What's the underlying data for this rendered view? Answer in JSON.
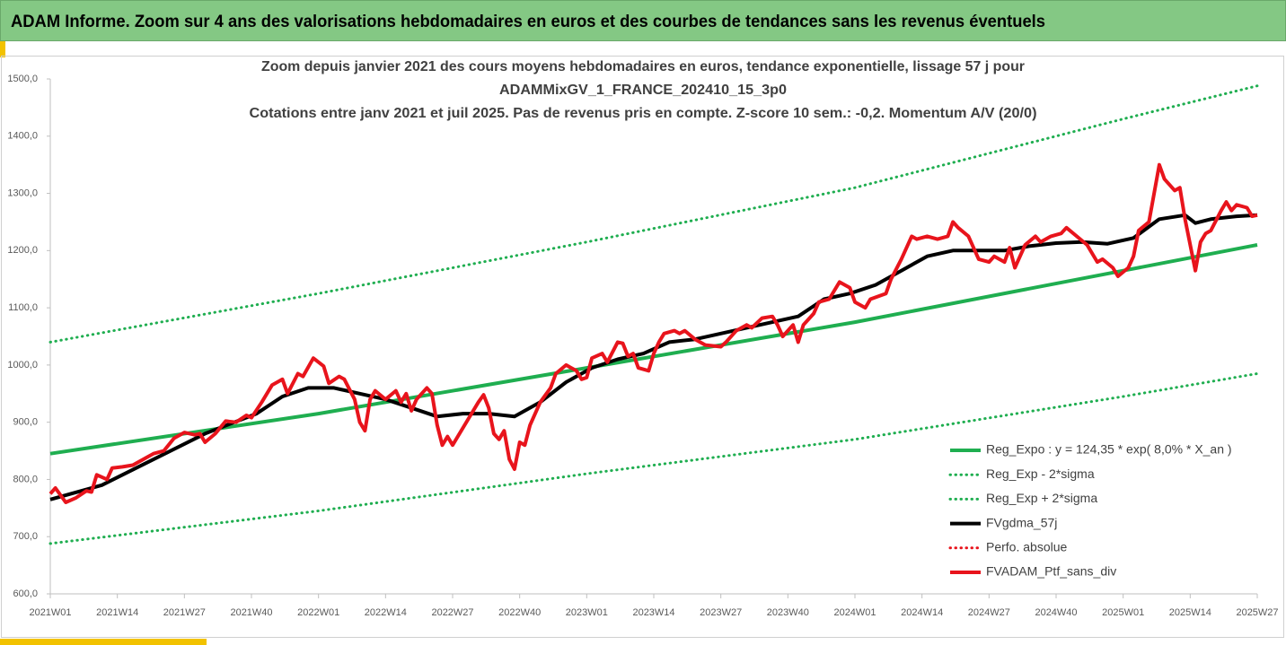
{
  "header": {
    "title": "ADAM Informe. Zoom sur 4 ans des valorisations hebdomadaires en euros et des courbes de tendances sans les revenus éventuels"
  },
  "chart_data": {
    "type": "line",
    "title": [
      "Zoom depuis janvier 2021 des cours moyens hebdomadaires  en euros, tendance exponentielle, lissage 57 j pour",
      "ADAMMixGV_1_FRANCE_202410_15_3p0",
      "Cotations entre janv 2021 et juil 2025. Pas de revenus pris en compte. Z-score 10 sem.: -0,2. Momentum A/V (20/0)"
    ],
    "xlim": [
      0,
      234
    ],
    "xticks": [
      {
        "value": 0,
        "label": "2021W01"
      },
      {
        "value": 13,
        "label": "2021W14"
      },
      {
        "value": 26,
        "label": "2021W27"
      },
      {
        "value": 39,
        "label": "2021W40"
      },
      {
        "value": 52,
        "label": "2022W01"
      },
      {
        "value": 65,
        "label": "2022W14"
      },
      {
        "value": 78,
        "label": "2022W27"
      },
      {
        "value": 91,
        "label": "2022W40"
      },
      {
        "value": 104,
        "label": "2023W01"
      },
      {
        "value": 117,
        "label": "2023W14"
      },
      {
        "value": 130,
        "label": "2023W27"
      },
      {
        "value": 143,
        "label": "2023W40"
      },
      {
        "value": 156,
        "label": "2024W01"
      },
      {
        "value": 169,
        "label": "2024W14"
      },
      {
        "value": 182,
        "label": "2024W27"
      },
      {
        "value": 195,
        "label": "2024W40"
      },
      {
        "value": 208,
        "label": "2025W01"
      },
      {
        "value": 221,
        "label": "2025W14"
      },
      {
        "value": 234,
        "label": "2025W27"
      }
    ],
    "ylim": [
      600,
      1500
    ],
    "yticks": [
      {
        "value": 600,
        "label": "600,0"
      },
      {
        "value": 700,
        "label": "700,0"
      },
      {
        "value": 800,
        "label": "800,0"
      },
      {
        "value": 900,
        "label": "900,0"
      },
      {
        "value": 1000,
        "label": "1000,0"
      },
      {
        "value": 1100,
        "label": "1100,0"
      },
      {
        "value": 1200,
        "label": "1200,0"
      },
      {
        "value": 1300,
        "label": "1300,0"
      },
      {
        "value": 1400,
        "label": "1400,0"
      },
      {
        "value": 1500,
        "label": "1500,0"
      }
    ],
    "grid": false,
    "legend": "lower-right",
    "series": [
      {
        "name": "Reg_Expo : y = 124,35 * exp( 8,0% *  X_an )",
        "color": "#1fae50",
        "style": "solid",
        "x": [
          0,
          52,
          104,
          156,
          208,
          234
        ],
        "values": [
          845,
          915,
          995,
          1075,
          1165,
          1210
        ]
      },
      {
        "name": "Reg_Exp - 2*sigma",
        "color": "#1fae50",
        "style": "dotted",
        "x": [
          0,
          52,
          104,
          156,
          208,
          234
        ],
        "values": [
          688,
          745,
          810,
          870,
          945,
          985
        ]
      },
      {
        "name": "Reg_Exp + 2*sigma",
        "color": "#1fae50",
        "style": "dotted",
        "x": [
          0,
          52,
          104,
          156,
          208,
          234
        ],
        "values": [
          1040,
          1125,
          1215,
          1310,
          1430,
          1488
        ]
      },
      {
        "name": "FVgdma_57j",
        "color": "#000000",
        "style": "solid",
        "x": [
          0,
          10,
          20,
          30,
          40,
          45,
          50,
          55,
          60,
          65,
          70,
          75,
          80,
          85,
          90,
          95,
          100,
          105,
          110,
          115,
          120,
          125,
          130,
          135,
          140,
          145,
          150,
          155,
          160,
          165,
          170,
          175,
          180,
          185,
          190,
          195,
          200,
          205,
          210,
          215,
          220,
          222,
          225,
          230,
          234
        ],
        "values": [
          765,
          790,
          835,
          880,
          915,
          945,
          960,
          960,
          950,
          940,
          925,
          910,
          915,
          915,
          910,
          935,
          970,
          995,
          1010,
          1020,
          1040,
          1045,
          1055,
          1065,
          1075,
          1085,
          1115,
          1125,
          1140,
          1165,
          1190,
          1200,
          1200,
          1200,
          1208,
          1213,
          1215,
          1212,
          1222,
          1255,
          1262,
          1248,
          1255,
          1260,
          1262
        ]
      },
      {
        "name": "Perfo. absolue",
        "color": "#e8141c",
        "style": "dotted",
        "x": [],
        "values": []
      },
      {
        "name": "FVADAM_Ptf_sans_div",
        "color": "#e8141c",
        "style": "solid",
        "x": [
          0,
          1,
          3,
          5,
          7,
          8,
          9,
          11,
          12,
          14,
          16,
          18,
          20,
          22,
          24,
          26,
          28,
          29,
          30,
          32,
          34,
          36,
          38,
          39,
          41,
          43,
          45,
          46,
          48,
          49,
          51,
          53,
          54,
          56,
          57,
          59,
          60,
          61,
          62,
          63,
          65,
          67,
          68,
          69,
          70,
          71,
          73,
          74,
          75,
          76,
          77,
          78,
          80,
          81,
          83,
          84,
          85,
          86,
          87,
          88,
          89,
          90,
          91,
          92,
          93,
          95,
          97,
          98,
          100,
          102,
          103,
          104,
          105,
          107,
          108,
          110,
          111,
          112,
          113,
          114,
          116,
          117,
          118,
          119,
          121,
          122,
          123,
          125,
          127,
          130,
          131,
          133,
          135,
          136,
          138,
          140,
          141,
          142,
          144,
          145,
          146,
          148,
          149,
          151,
          153,
          155,
          156,
          158,
          159,
          162,
          163,
          165,
          167,
          168,
          170,
          172,
          174,
          175,
          176,
          178,
          180,
          182,
          183,
          185,
          186,
          187,
          189,
          191,
          192,
          194,
          196,
          197,
          199,
          201,
          203,
          204,
          206,
          207,
          209,
          210,
          211,
          213,
          215,
          216,
          218,
          219,
          220,
          222,
          223,
          224,
          225,
          227,
          228,
          229,
          230,
          232,
          233,
          234
        ],
        "values": [
          775,
          785,
          760,
          768,
          780,
          778,
          808,
          800,
          820,
          822,
          825,
          835,
          845,
          850,
          872,
          882,
          878,
          880,
          865,
          880,
          902,
          900,
          912,
          908,
          935,
          965,
          975,
          950,
          985,
          980,
          1012,
          998,
          968,
          980,
          975,
          940,
          900,
          885,
          940,
          955,
          940,
          955,
          935,
          950,
          920,
          940,
          960,
          950,
          895,
          860,
          875,
          860,
          890,
          905,
          935,
          948,
          925,
          880,
          870,
          885,
          835,
          818,
          865,
          860,
          895,
          935,
          960,
          985,
          1000,
          990,
          975,
          978,
          1012,
          1020,
          1005,
          1040,
          1038,
          1015,
          1020,
          995,
          990,
          1020,
          1040,
          1055,
          1060,
          1055,
          1060,
          1045,
          1035,
          1032,
          1040,
          1060,
          1070,
          1065,
          1082,
          1085,
          1070,
          1050,
          1070,
          1040,
          1070,
          1090,
          1110,
          1115,
          1145,
          1135,
          1110,
          1100,
          1115,
          1125,
          1150,
          1185,
          1225,
          1220,
          1225,
          1220,
          1225,
          1250,
          1240,
          1225,
          1185,
          1180,
          1190,
          1180,
          1205,
          1170,
          1210,
          1225,
          1215,
          1225,
          1230,
          1240,
          1225,
          1210,
          1180,
          1185,
          1170,
          1155,
          1170,
          1190,
          1235,
          1250,
          1350,
          1325,
          1305,
          1310,
          1255,
          1165,
          1215,
          1230,
          1235,
          1270,
          1285,
          1270,
          1280,
          1275,
          1260,
          1262
        ]
      }
    ]
  }
}
